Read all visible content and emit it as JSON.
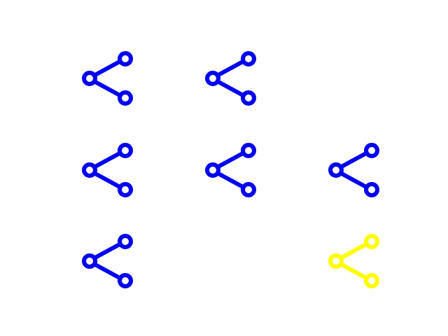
{
  "grid": {
    "rows": 3,
    "columns": 3,
    "cells": [
      {
        "row": 0,
        "col": 0,
        "icon": "share-icon",
        "color": "#0000ee"
      },
      {
        "row": 0,
        "col": 1,
        "icon": "share-icon",
        "color": "#0000ee"
      },
      {
        "row": 0,
        "col": 2,
        "icon": null,
        "color": null
      },
      {
        "row": 1,
        "col": 0,
        "icon": "share-icon",
        "color": "#0000ee"
      },
      {
        "row": 1,
        "col": 1,
        "icon": "share-icon",
        "color": "#0000ee"
      },
      {
        "row": 1,
        "col": 2,
        "icon": "share-icon",
        "color": "#0000ee"
      },
      {
        "row": 2,
        "col": 0,
        "icon": "share-icon",
        "color": "#0000ee"
      },
      {
        "row": 2,
        "col": 1,
        "icon": null,
        "color": null
      },
      {
        "row": 2,
        "col": 2,
        "icon": "share-icon",
        "color": "#ffff00"
      }
    ]
  },
  "colors": {
    "background": "#ffffff",
    "default_icon": "#0000ee",
    "highlight_icon": "#ffff00"
  }
}
